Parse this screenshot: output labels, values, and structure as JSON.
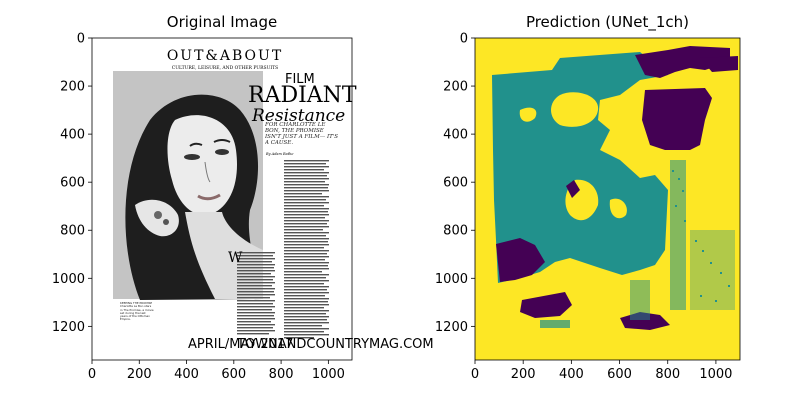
{
  "panels": [
    {
      "title": "Original Image",
      "x_ticks": [
        "0",
        "200",
        "400",
        "600",
        "800",
        "1000"
      ],
      "y_ticks": [
        "0",
        "200",
        "400",
        "600",
        "800",
        "1000",
        "1200"
      ],
      "magazine": {
        "masthead": "OUT&ABOUT",
        "tagline": "CULTURE, LEISURE, AND OTHER PURSUITS",
        "section": "FILM",
        "headline_1": "RADIANT",
        "headline_2": "Resistance",
        "dek": "FOR CHARLOTTE LE BON, THE PROMISE ISN'T JUST A FILM— IT'S A CAUSE.",
        "byline": "By Adam Rathe",
        "caption": "KEEPING THE PROMISE Charlotte Le Bon stars in The Promise, a movie set during the last years of the Ottoman Empire.",
        "dropcap": "W",
        "footer_left": "APRIL/MAY 2017",
        "footer_right": "TOWNANDCOUNTRYMAG.COM"
      }
    },
    {
      "title": "Prediction (UNet_1ch)",
      "x_ticks": [
        "0",
        "200",
        "400",
        "600",
        "800",
        "1000"
      ],
      "y_ticks": [
        "0",
        "200",
        "400",
        "600",
        "800",
        "1000",
        "1200"
      ]
    }
  ],
  "colors": {
    "class_background": "#fde725",
    "class_image": "#21918c",
    "class_text": "#440154"
  }
}
